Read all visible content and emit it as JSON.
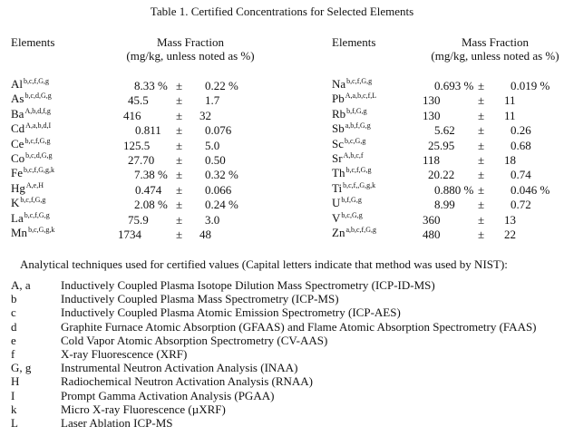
{
  "title": "Table 1.  Certified Concentrations for Selected Elements",
  "headers": {
    "elements": "Elements",
    "mass_fraction": "Mass Fraction",
    "units": "(mg/kg, unless noted as %)"
  },
  "left_rows": [
    {
      "el": "Al",
      "sup": "b,c,f,G,g",
      "value": "8.33 %",
      "pm": "±",
      "unc": "0.22 %"
    },
    {
      "el": "As",
      "sup": "b,c,d,G,g",
      "value": "45.5",
      "pm": "±",
      "unc": "1.7"
    },
    {
      "el": "Ba",
      "sup": "A,b,d,f,g",
      "value": "416",
      "pm": "±",
      "unc": "32"
    },
    {
      "el": "Cd",
      "sup": "A,a,b,d,I",
      "value": "0.811",
      "pm": "±",
      "unc": "0.076"
    },
    {
      "el": "Ce",
      "sup": "b,c,f,G,g",
      "value": "125.5",
      "pm": "±",
      "unc": "5.0"
    },
    {
      "el": "Co",
      "sup": "b,c,d,G,g",
      "value": "27.70",
      "pm": "±",
      "unc": "0.50"
    },
    {
      "el": "Fe",
      "sup": "b,c,f,G,g,k",
      "value": "7.38 %",
      "pm": "±",
      "unc": "0.32 %"
    },
    {
      "el": "Hg",
      "sup": "A,e,H",
      "value": "0.474",
      "pm": "±",
      "unc": "0.066"
    },
    {
      "el": "K",
      "sup": "b,c,f,G,g",
      "value": "2.08 %",
      "pm": "±",
      "unc": "0.24 %"
    },
    {
      "el": "La",
      "sup": "b,c,f,G,g",
      "value": "75.9",
      "pm": "±",
      "unc": "3.0"
    },
    {
      "el": "Mn",
      "sup": "b,c,G,g,k",
      "value": "1734",
      "pm": "±",
      "unc": "48"
    }
  ],
  "right_rows": [
    {
      "el": "Na",
      "sup": "b,c,f,G,g",
      "value": "0.693 %",
      "pm": "±",
      "unc": "0.019 %"
    },
    {
      "el": "Pb",
      "sup": "A,a,b,c,f,L",
      "value": "130",
      "pm": "±",
      "unc": "11"
    },
    {
      "el": "Rb",
      "sup": "b,f,G,g",
      "value": "130",
      "pm": "±",
      "unc": "11"
    },
    {
      "el": "Sb",
      "sup": "a,b,f,G,g",
      "value": "5.62",
      "pm": "±",
      "unc": "0.26"
    },
    {
      "el": "Sc",
      "sup": "b,c,G,g",
      "value": "25.95",
      "pm": "±",
      "unc": "0.68"
    },
    {
      "el": "Sr",
      "sup": "A,b,c,f",
      "value": "118",
      "pm": "±",
      "unc": "18"
    },
    {
      "el": "Th",
      "sup": "b,c,f,G,g",
      "value": "20.22",
      "pm": "±",
      "unc": "0.74"
    },
    {
      "el": "Ti",
      "sup": "b,c,f,,G,g,k",
      "value": "0.880 %",
      "pm": "±",
      "unc": "0.046 %"
    },
    {
      "el": "U",
      "sup": "b,f,G,g",
      "value": "8.99",
      "pm": "±",
      "unc": "0.72"
    },
    {
      "el": "V",
      "sup": "b,c,G,g",
      "value": "360",
      "pm": "±",
      "unc": "13"
    },
    {
      "el": "Zn",
      "sup": "a,b,c,f,G,g",
      "value": "480",
      "pm": "±",
      "unc": "22"
    }
  ],
  "techniques_intro": "Analytical techniques used for certified values (Capital letters indicate that method was used by NIST):",
  "techniques": [
    {
      "code": "A, a",
      "name": "Inductively Coupled Plasma Isotope Dilution Mass Spectrometry (ICP-ID-MS)"
    },
    {
      "code": "b",
      "name": "Inductively Coupled Plasma Mass Spectrometry (ICP-MS)"
    },
    {
      "code": "c",
      "name": "Inductively Coupled Plasma Atomic Emission Spectrometry (ICP-AES)"
    },
    {
      "code": "d",
      "name": "Graphite Furnace Atomic Absorption (GFAAS) and Flame Atomic Absorption Spectrometry (FAAS)"
    },
    {
      "code": "e",
      "name": "Cold Vapor Atomic Absorption Spectrometry (CV-AAS)"
    },
    {
      "code": "f",
      "name": "X-ray Fluorescence (XRF)"
    },
    {
      "code": "G, g",
      "name": "Instrumental Neutron Activation Analysis (INAA)"
    },
    {
      "code": "H",
      "name": "Radiochemical Neutron Activation Analysis (RNAA)"
    },
    {
      "code": "I",
      "name": "Prompt Gamma Activation Analysis (PGAA)"
    },
    {
      "code": "k",
      "name": "Micro X-ray Fluorescence (µXRF)"
    },
    {
      "code": "L",
      "name": "Laser Ablation ICP-MS"
    }
  ]
}
